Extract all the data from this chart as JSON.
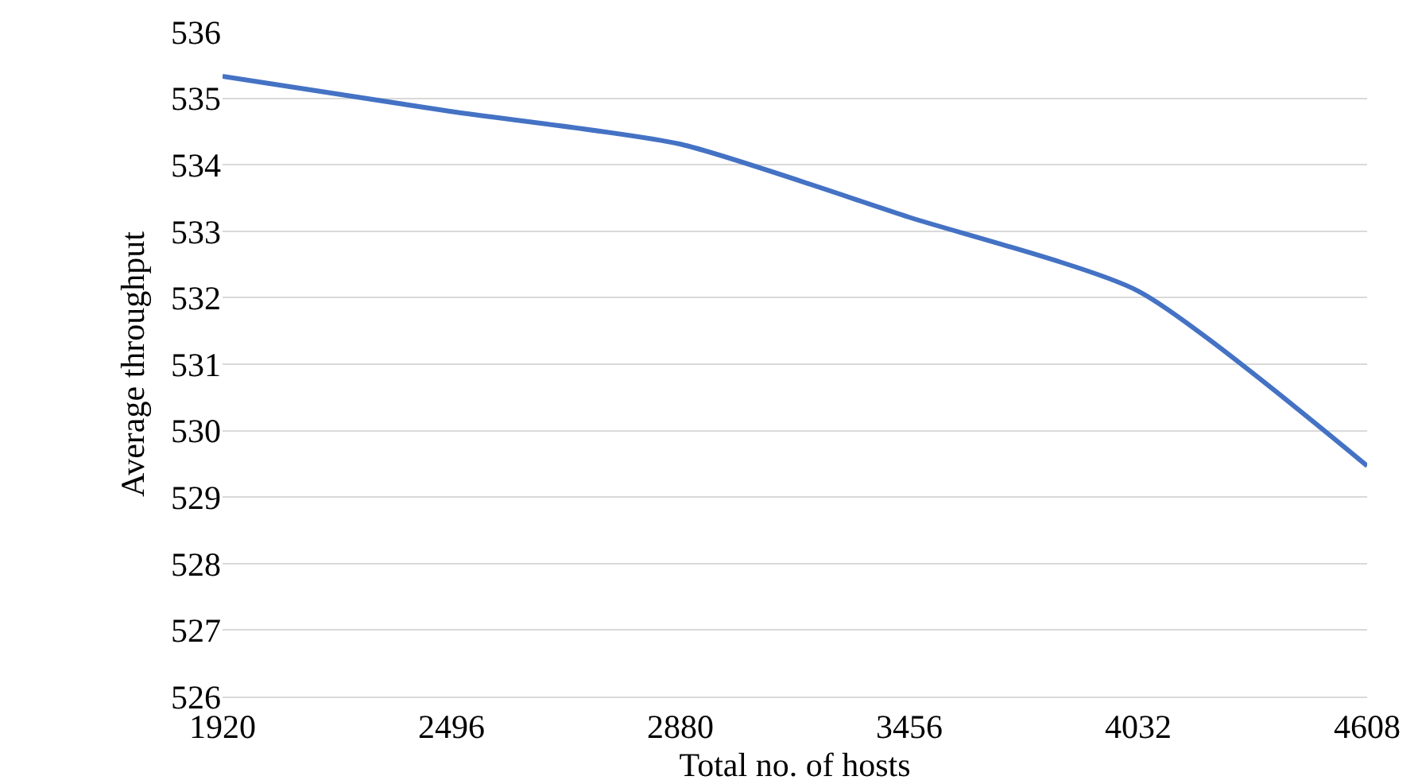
{
  "chart_data": {
    "type": "line",
    "xlabel": "Total no. of hosts",
    "ylabel": "Average throughput",
    "categories": [
      "1920",
      "2496",
      "2880",
      "3456",
      "4032",
      "4608"
    ],
    "series": [
      {
        "color": "#4472c4",
        "values": [
          535.33,
          534.8,
          534.31,
          533.21,
          532.1,
          529.47
        ]
      }
    ],
    "ylim": [
      526,
      536
    ],
    "yticks": [
      526,
      527,
      528,
      529,
      530,
      531,
      532,
      533,
      534,
      535,
      536
    ],
    "grid": "y",
    "legend": false,
    "marker": "none",
    "line_style": "solid"
  }
}
